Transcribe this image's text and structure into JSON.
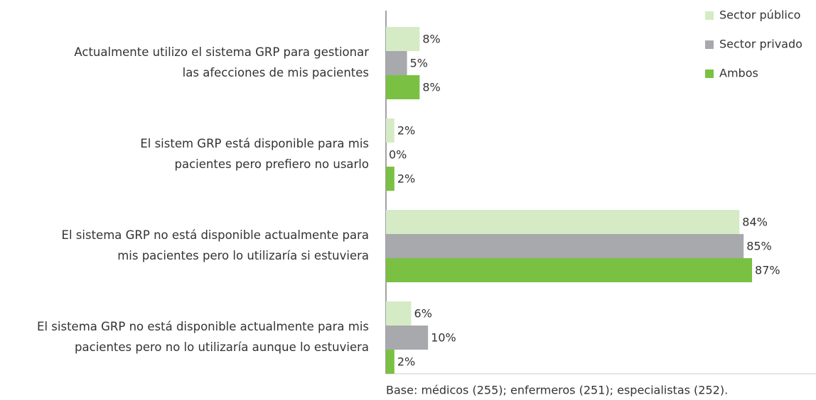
{
  "chart_data": {
    "type": "barh",
    "categories": [
      [
        "Actualmente utilizo el sistema GRP para gestionar",
        "las afecciones de mis pacientes"
      ],
      [
        "El sistem GRP está disponible para mis",
        "pacientes pero prefiero no usarlo"
      ],
      [
        "El sistema GRP no está disponible actualmente para",
        "mis pacientes pero lo utilizaría si estuviera"
      ],
      [
        "El sistema GRP no está disponible actualmente para mis",
        "pacientes pero no lo utilizaría aunque lo estuviera"
      ]
    ],
    "series": [
      {
        "name": "Sector público",
        "color": "#d5ebc6",
        "values": [
          8,
          2,
          84,
          6
        ],
        "value_labels": [
          "8%",
          "2%",
          "84%",
          "6%"
        ]
      },
      {
        "name": "Sector privado",
        "color": "#a7a9ac",
        "values": [
          5,
          0,
          85,
          10
        ],
        "value_labels": [
          "5%",
          "0%",
          "85%",
          "10%"
        ]
      },
      {
        "name": "Ambos",
        "color": "#7ac143",
        "values": [
          8,
          2,
          87,
          2
        ],
        "value_labels": [
          "8%",
          "2%",
          "87%",
          "2%"
        ]
      }
    ],
    "xlim": [
      0,
      100
    ],
    "legend": "top-right",
    "note": "Base: médicos (255); enfermeros (251); especialistas (252)."
  }
}
